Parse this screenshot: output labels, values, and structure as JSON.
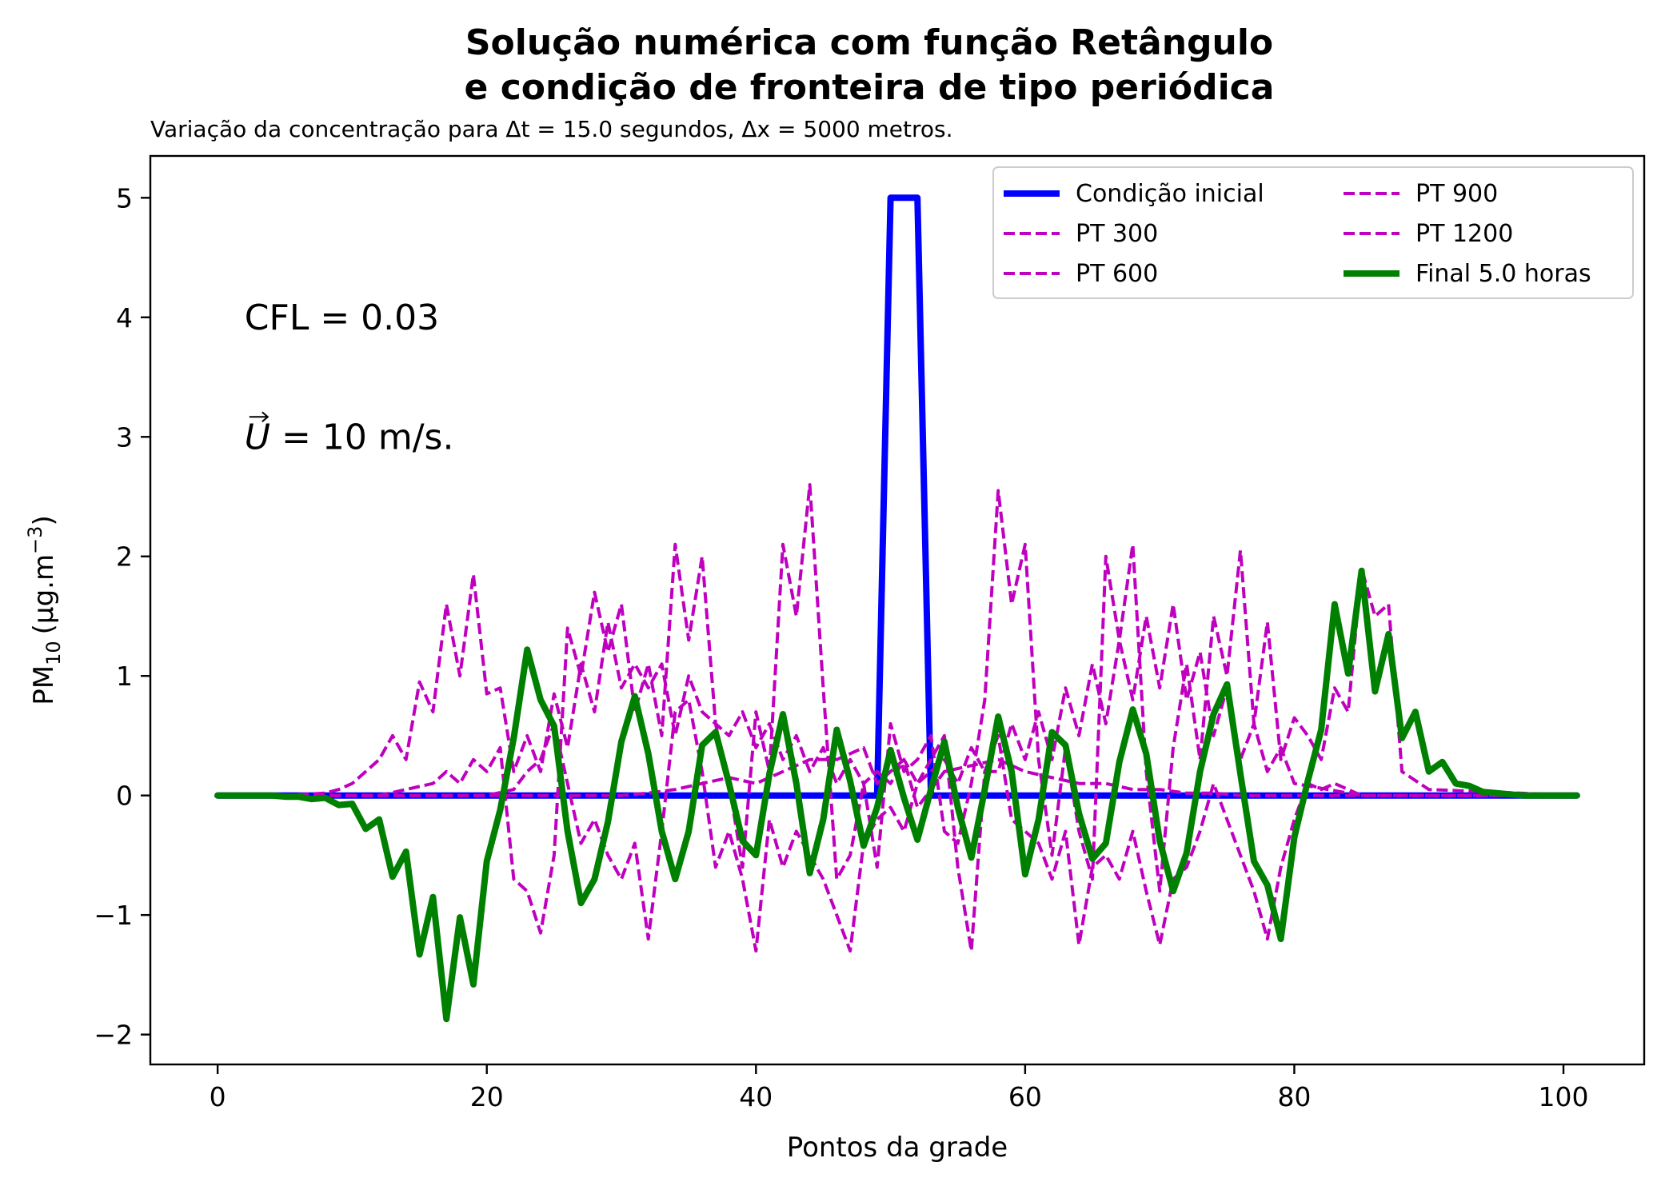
{
  "chart_data": {
    "type": "line",
    "title_line1": "Solução numérica com função Retângulo",
    "title_line2": "e condição de fronteira de tipo periódica",
    "subtitle": "Variação da concentração para Δt = 15.0 segundos, Δx = 5000 metros.",
    "xlabel": "Pontos da grade",
    "ylabel_main": "PM",
    "ylabel_sub": "10",
    "ylabel_unit": "(μg.m",
    "ylabel_exp": "−3",
    "ylabel_close": ")",
    "xlim": [
      -5,
      106
    ],
    "ylim": [
      -2.25,
      5.35
    ],
    "xticks": [
      0,
      20,
      40,
      60,
      80,
      100
    ],
    "yticks": [
      -2,
      -1,
      0,
      1,
      2,
      3,
      4,
      5
    ],
    "xtick_labels": [
      "0",
      "20",
      "40",
      "60",
      "80",
      "100"
    ],
    "ytick_labels": [
      "−2",
      "−1",
      "0",
      "1",
      "2",
      "3",
      "4",
      "5"
    ],
    "annotations": [
      {
        "text": "CFL = 0.03",
        "x": 2,
        "y": 4.0
      },
      {
        "text_vec": "U",
        "text_rest": " = 10 m/s.",
        "x": 2,
        "y": 3.0
      }
    ],
    "legend_location": "upper-right",
    "series": [
      {
        "name": "Condição inicial",
        "color": "#0000ff",
        "style": "solid",
        "x": [
          0,
          49,
          50,
          52,
          53,
          101
        ],
        "y": [
          0,
          0,
          5,
          5,
          0,
          0
        ]
      },
      {
        "name": "PT 300",
        "color": "#bf00bf",
        "style": "dashed",
        "x": [
          0,
          5,
          8,
          9,
          10,
          11,
          12,
          13,
          14,
          15,
          16,
          17,
          18,
          19,
          20,
          21,
          22,
          23,
          24,
          25,
          26,
          27,
          28,
          29,
          30,
          31,
          32,
          33,
          34,
          35,
          36,
          37,
          38,
          39,
          40,
          41,
          42,
          43,
          44,
          45,
          46,
          47,
          48,
          49,
          50,
          51,
          52,
          53,
          54,
          55,
          56,
          57,
          58,
          59,
          60,
          61,
          62,
          63,
          64,
          65,
          66,
          67,
          68,
          69,
          70,
          71,
          72,
          73,
          74,
          75,
          76,
          77,
          78,
          79,
          80,
          85,
          101
        ],
        "y": [
          0,
          0,
          0.02,
          0.05,
          0.1,
          0.2,
          0.3,
          0.5,
          0.3,
          0.95,
          0.7,
          1.6,
          1.0,
          1.85,
          0.85,
          0.9,
          0.2,
          0.5,
          0.2,
          0.85,
          0.4,
          1.1,
          0.7,
          1.45,
          0.9,
          1.1,
          0.9,
          1.1,
          0.5,
          1.0,
          0.7,
          0.6,
          0.5,
          0.7,
          0.4,
          0.6,
          0.3,
          0.5,
          0.2,
          0.4,
          0.1,
          0.3,
          0.1,
          0.2,
          0.1,
          0.3,
          0.1,
          0.2,
          0.3,
          0.1,
          0.4,
          0.2,
          0.2,
          0.6,
          0.3,
          0.7,
          0.3,
          0.9,
          0.5,
          1.1,
          0.6,
          1.3,
          0.8,
          1.5,
          0.9,
          1.6,
          0.8,
          1.2,
          0.5,
          0.9,
          0.3,
          0.6,
          0.2,
          0.4,
          0.1,
          0,
          0
        ]
      },
      {
        "name": "PT 600",
        "color": "#bf00bf",
        "style": "dashed",
        "x": [
          0,
          12,
          14,
          16,
          17,
          18,
          19,
          20,
          21,
          22,
          23,
          24,
          25,
          26,
          27,
          28,
          29,
          30,
          31,
          32,
          33,
          34,
          35,
          36,
          37,
          38,
          39,
          40,
          41,
          42,
          43,
          44,
          45,
          46,
          47,
          48,
          49,
          50,
          51,
          52,
          53,
          54,
          55,
          56,
          57,
          58,
          59,
          60,
          61,
          62,
          63,
          64,
          65,
          66,
          67,
          68,
          69,
          70,
          71,
          72,
          73,
          74,
          75,
          76,
          77,
          78,
          79,
          80,
          81,
          82,
          83,
          84,
          85,
          86,
          87,
          88,
          90,
          101
        ],
        "y": [
          0,
          0,
          0.05,
          0.1,
          0.2,
          0.1,
          0.3,
          0.2,
          0.4,
          -0.7,
          -0.8,
          -1.15,
          -0.5,
          1.4,
          1.0,
          1.7,
          1.2,
          1.6,
          0.7,
          1.1,
          0.5,
          2.1,
          1.3,
          2.0,
          0.6,
          0.1,
          -0.6,
          0.7,
          0.2,
          2.1,
          1.5,
          2.6,
          0.9,
          -0.7,
          -0.5,
          0.1,
          -0.6,
          0.6,
          0.2,
          0.3,
          0.5,
          -0.3,
          -0.4,
          0.1,
          0.8,
          2.55,
          1.6,
          2.1,
          0.3,
          -0.5,
          0.4,
          -0.3,
          -0.7,
          2.0,
          1.3,
          2.1,
          0.2,
          -0.8,
          0.4,
          1.1,
          0.3,
          1.5,
          1.0,
          2.05,
          0.6,
          1.45,
          0.3,
          0.65,
          0.5,
          0.3,
          0.9,
          0.7,
          1.9,
          1.5,
          1.6,
          0.2,
          0.05,
          0
        ]
      },
      {
        "name": "PT 900",
        "color": "#bf00bf",
        "style": "dashed",
        "x": [
          0,
          20,
          22,
          23,
          24,
          25,
          26,
          27,
          28,
          29,
          30,
          31,
          32,
          33,
          34,
          35,
          36,
          37,
          38,
          39,
          40,
          41,
          42,
          43,
          44,
          45,
          46,
          47,
          48,
          49,
          50,
          51,
          52,
          53,
          54,
          55,
          56,
          57,
          58,
          59,
          60,
          61,
          62,
          63,
          64,
          65,
          66,
          67,
          68,
          69,
          70,
          71,
          72,
          73,
          74,
          75,
          76,
          77,
          78,
          79,
          80,
          81,
          82,
          83,
          84,
          85,
          101
        ],
        "y": [
          0,
          0,
          0.05,
          0.2,
          0.3,
          0.6,
          0.1,
          -0.4,
          -0.2,
          -0.5,
          -0.7,
          -0.4,
          -1.2,
          -0.3,
          0.7,
          0.8,
          0.2,
          -0.6,
          -0.3,
          -0.7,
          -1.3,
          -0.2,
          -0.6,
          -0.3,
          -0.5,
          -0.7,
          -1.0,
          -1.3,
          -0.4,
          -0.2,
          -0.1,
          -0.3,
          0.1,
          0.3,
          0.5,
          -0.6,
          -1.3,
          0.2,
          0.5,
          -0.2,
          -0.3,
          -0.4,
          -0.7,
          -0.3,
          -1.25,
          -0.6,
          -0.5,
          -0.7,
          -0.3,
          -0.8,
          -1.25,
          -0.7,
          -0.6,
          -0.3,
          0.1,
          -0.2,
          -0.5,
          -0.8,
          -1.2,
          -0.6,
          -0.2,
          0.1,
          0.05,
          0.1,
          0.05,
          0,
          0
        ]
      },
      {
        "name": "PT 1200",
        "color": "#bf00bf",
        "style": "dashed",
        "x": [
          0,
          30,
          32,
          34,
          36,
          38,
          40,
          42,
          44,
          46,
          47,
          48,
          49,
          50,
          51,
          52,
          54,
          56,
          58,
          60,
          62,
          64,
          66,
          68,
          70,
          72,
          74,
          76,
          78,
          80,
          101
        ],
        "y": [
          0,
          0,
          0.02,
          0.05,
          0.1,
          0.15,
          0.1,
          0.2,
          0.3,
          0.3,
          0.35,
          0.4,
          0.1,
          0.2,
          0.3,
          -0.1,
          0.2,
          0.25,
          0.3,
          0.2,
          0.15,
          0.1,
          0.1,
          0.05,
          0.05,
          0.02,
          0.02,
          0,
          0,
          0,
          0
        ]
      },
      {
        "name": "Final 5.0 horas",
        "color": "#008000",
        "style": "solid",
        "x": [
          0,
          1,
          2,
          3,
          4,
          5,
          6,
          7,
          8,
          9,
          10,
          11,
          12,
          13,
          14,
          15,
          16,
          17,
          18,
          19,
          20,
          21,
          22,
          23,
          24,
          25,
          26,
          27,
          28,
          29,
          30,
          31,
          32,
          33,
          34,
          35,
          36,
          37,
          38,
          39,
          40,
          41,
          42,
          43,
          44,
          45,
          46,
          47,
          48,
          49,
          50,
          51,
          52,
          53,
          54,
          55,
          56,
          57,
          58,
          59,
          60,
          61,
          62,
          63,
          64,
          65,
          66,
          67,
          68,
          69,
          70,
          71,
          72,
          73,
          74,
          75,
          76,
          77,
          78,
          79,
          80,
          81,
          82,
          83,
          84,
          85,
          86,
          87,
          88,
          89,
          90,
          91,
          92,
          93,
          94,
          95,
          96,
          97,
          98,
          99,
          100,
          101
        ],
        "y": [
          0,
          0,
          0,
          0,
          0,
          -0.01,
          -0.01,
          -0.03,
          -0.02,
          -0.08,
          -0.07,
          -0.28,
          -0.2,
          -0.68,
          -0.47,
          -1.33,
          -0.85,
          -1.87,
          -1.02,
          -1.58,
          -0.55,
          -0.12,
          0.48,
          1.22,
          0.8,
          0.58,
          -0.3,
          -0.9,
          -0.7,
          -0.22,
          0.45,
          0.83,
          0.35,
          -0.3,
          -0.7,
          -0.3,
          0.42,
          0.53,
          0.1,
          -0.38,
          -0.5,
          0.18,
          0.68,
          0.1,
          -0.65,
          -0.2,
          0.55,
          0.12,
          -0.42,
          -0.1,
          0.38,
          -0.02,
          -0.37,
          0.05,
          0.45,
          -0.1,
          -0.52,
          0.05,
          0.66,
          0.2,
          -0.66,
          -0.2,
          0.53,
          0.42,
          -0.15,
          -0.53,
          -0.4,
          0.28,
          0.72,
          0.35,
          -0.38,
          -0.8,
          -0.48,
          0.2,
          0.68,
          0.93,
          0.18,
          -0.55,
          -0.75,
          -1.2,
          -0.35,
          0.12,
          0.55,
          1.6,
          1.02,
          1.88,
          0.87,
          1.35,
          0.48,
          0.7,
          0.2,
          0.28,
          0.1,
          0.08,
          0.03,
          0.02,
          0.01,
          0,
          0,
          0,
          0,
          0
        ]
      }
    ]
  }
}
